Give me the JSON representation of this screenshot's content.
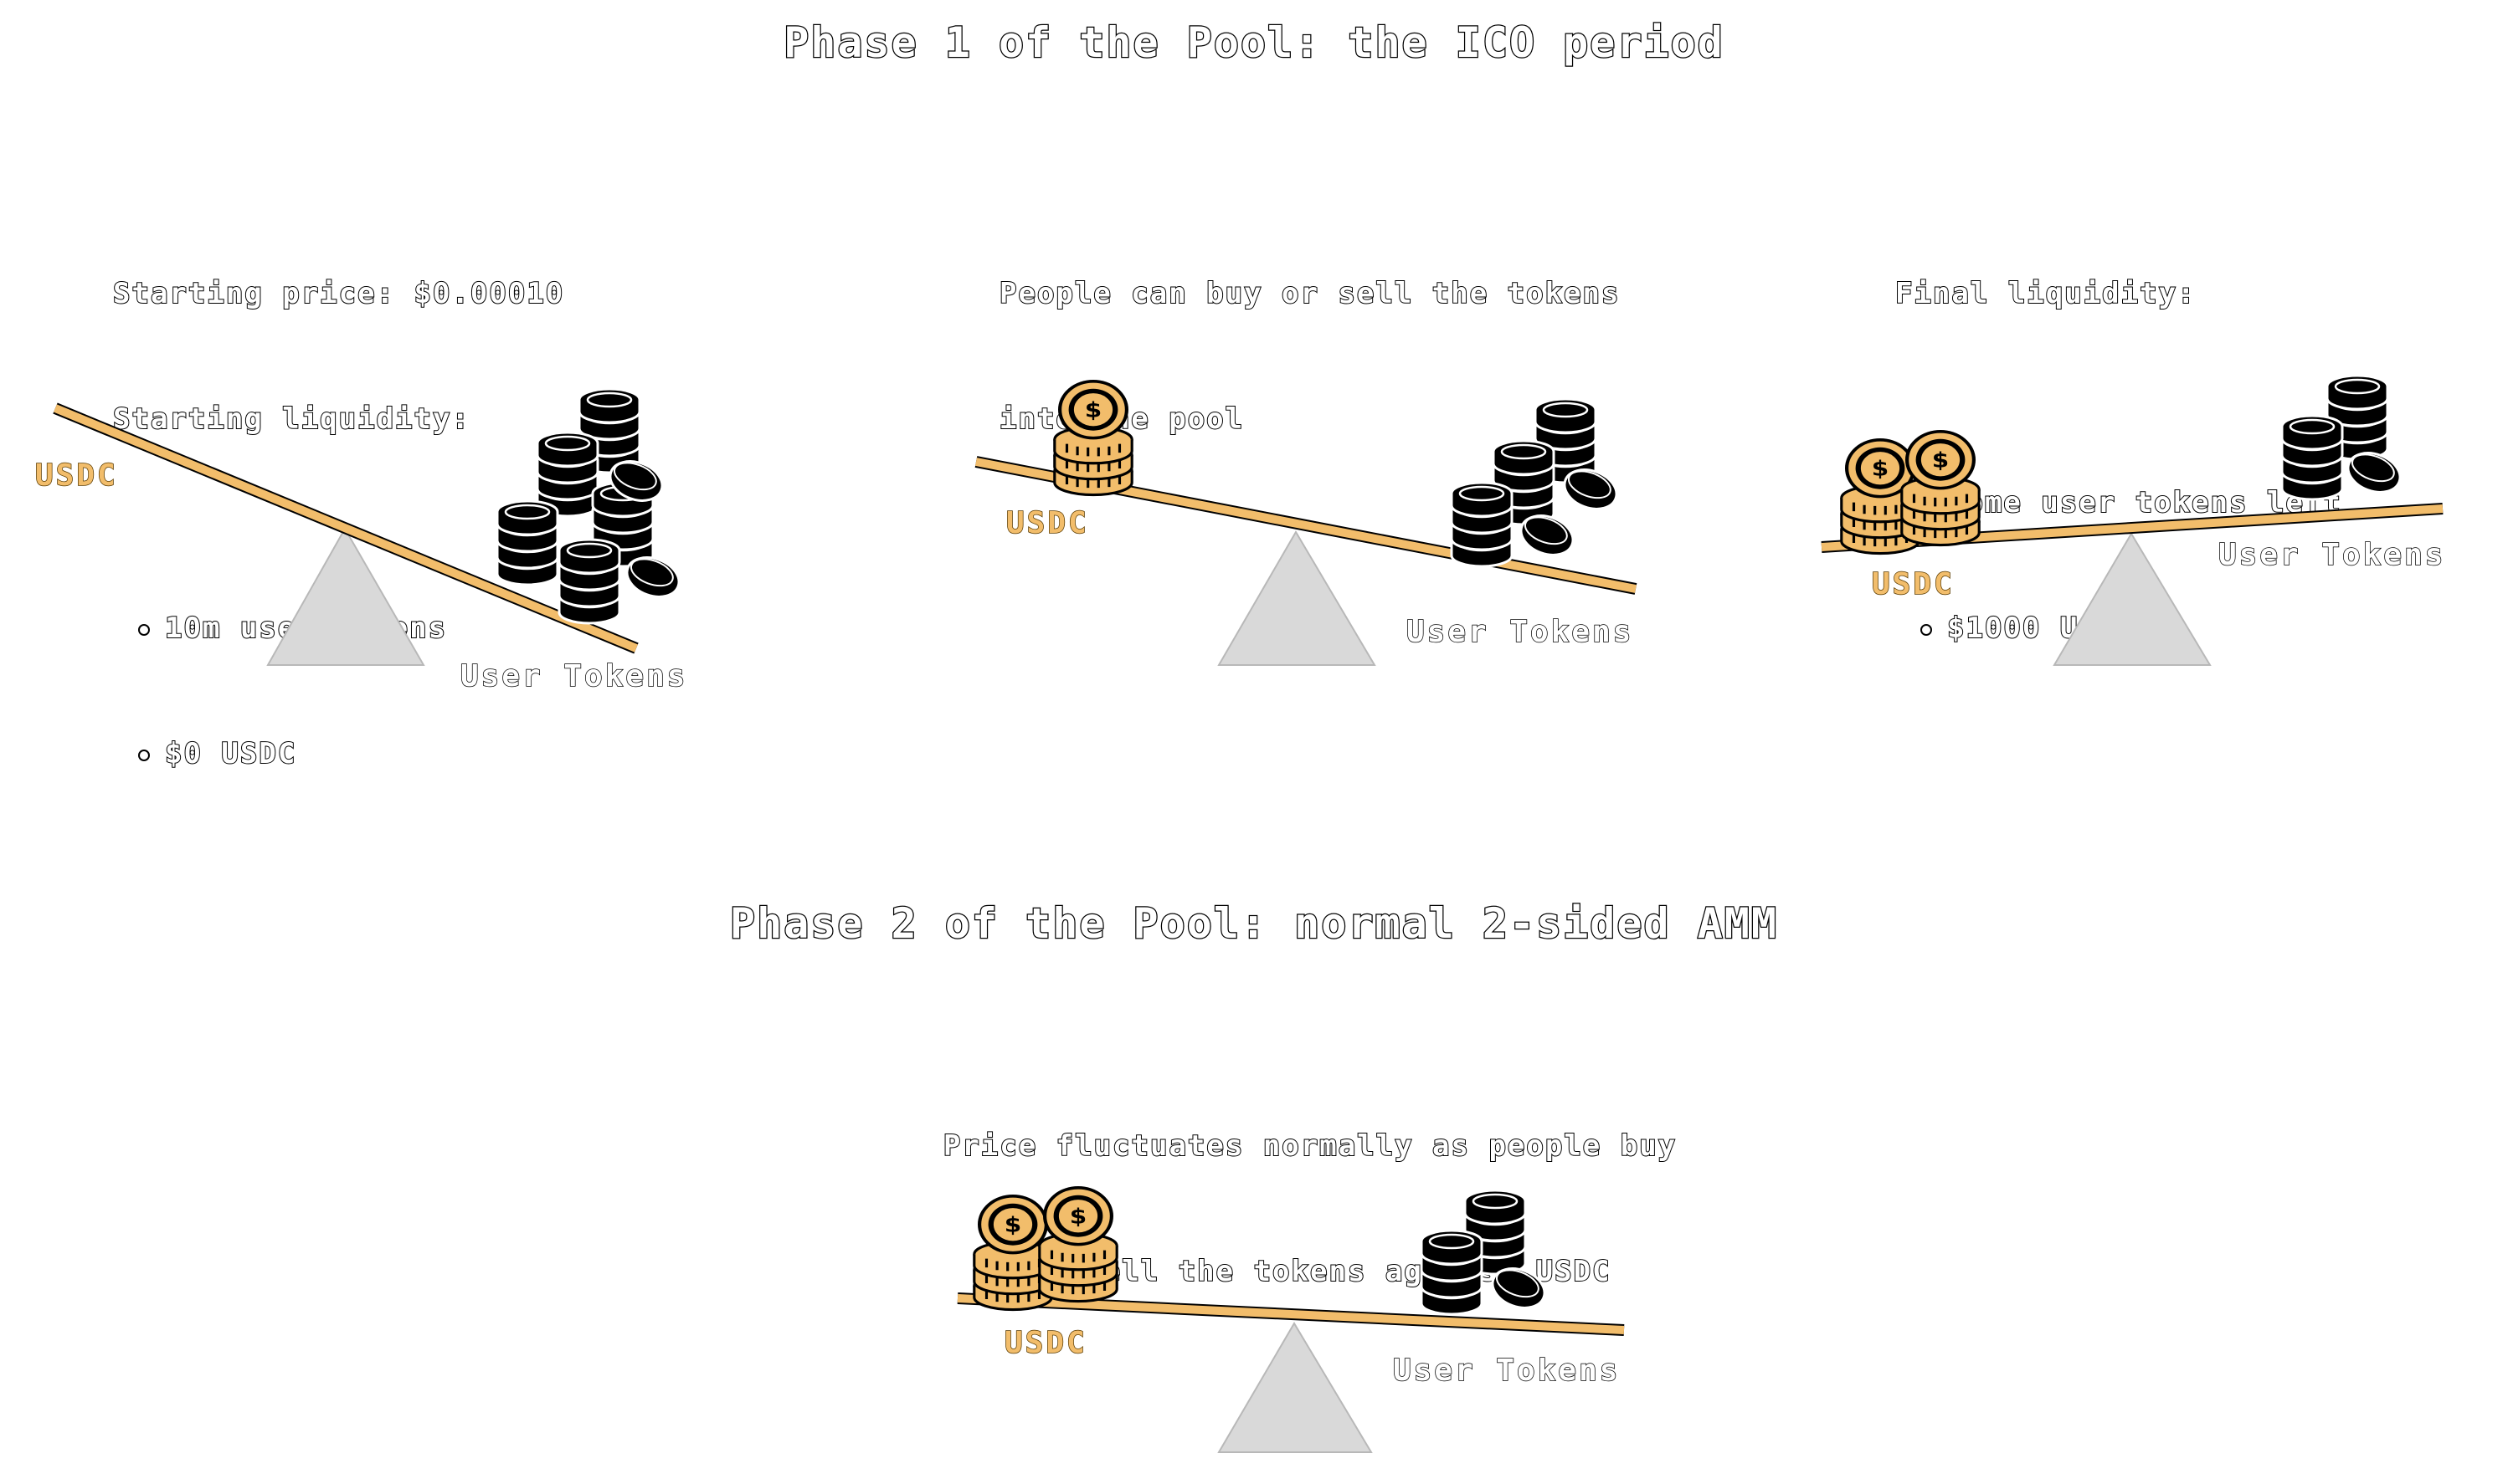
{
  "phase1": {
    "title": "Phase 1 of the Pool: the ICO period",
    "panel1": {
      "line1": "Starting price: $0.00010",
      "line2": "Starting liquidity:",
      "bullets": [
        "10m user tokens",
        "$0 USDC"
      ],
      "usdc_label": "USDC",
      "tokens_label": "User Tokens"
    },
    "panel2": {
      "line1": "People can buy or sell the tokens",
      "line2": "into the pool",
      "usdc_label": "USDC",
      "tokens_label": "User Tokens"
    },
    "panel3": {
      "line1": "Final liquidity:",
      "bullets": [
        "Some user tokens left",
        "$1000 USDC"
      ],
      "usdc_label": "USDC",
      "tokens_label": "User Tokens"
    }
  },
  "phase2": {
    "title": "Phase 2 of the Pool: normal 2-sided AMM",
    "line1": "Price fluctuates normally as people buy",
    "line2": "and sell the tokens against USDC",
    "usdc_label": "USDC",
    "tokens_label": "User Tokens"
  },
  "colors": {
    "beam": "#f2bd6b",
    "usdc": "#f2bd6b",
    "fulcrum": "#d9d9d9",
    "coin_dark": "#000000"
  },
  "icons": {
    "usdc_stack": "gold-coin-stack-icon",
    "token_stack": "black-coin-stack-icon"
  }
}
